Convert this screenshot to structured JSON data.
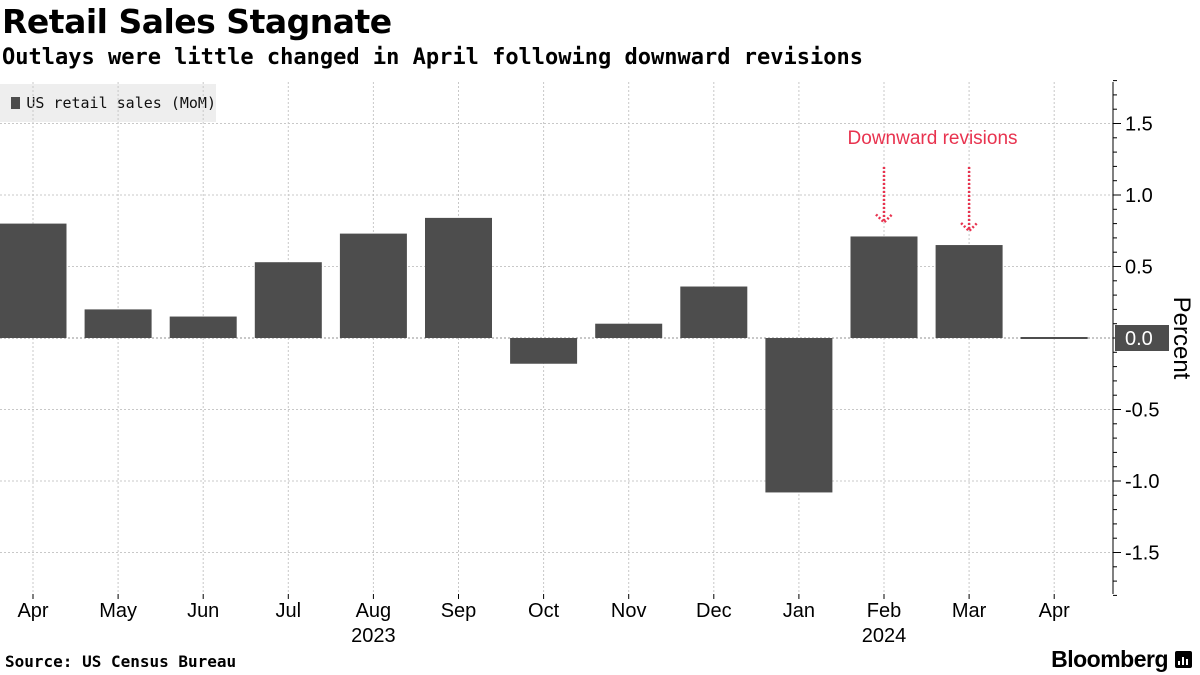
{
  "title": "Retail Sales Stagnate",
  "subtitle": "Outlays were little changed in April following downward revisions",
  "legend": {
    "series_label": "US retail sales (MoM)"
  },
  "source": "Source: US Census Bureau",
  "brand": "Bloomberg",
  "brand_icon": "bloomberg-terminal-icon",
  "colors": {
    "bar": "#4d4d4d",
    "annotation": "#e8334f",
    "grid": "#c8c8c8"
  },
  "chart_data": {
    "type": "bar",
    "title": "Retail Sales Stagnate",
    "subtitle": "Outlays were little changed in April following downward revisions",
    "categories": [
      "Apr",
      "May",
      "Jun",
      "Jul",
      "Aug",
      "Sep",
      "Oct",
      "Nov",
      "Dec",
      "Jan",
      "Feb",
      "Mar",
      "Apr"
    ],
    "year_labels": [
      {
        "label": "2023",
        "start_index": 0,
        "end_index": 8
      },
      {
        "label": "2024",
        "start_index": 9,
        "end_index": 12
      }
    ],
    "series": [
      {
        "name": "US retail sales (MoM)",
        "values": [
          0.8,
          0.2,
          0.15,
          0.53,
          0.73,
          0.84,
          -0.18,
          0.1,
          0.36,
          -1.08,
          0.71,
          0.65,
          0.0
        ]
      }
    ],
    "ylabel": "Percent",
    "ylim": [
      -1.8,
      1.8
    ],
    "yticks": [
      1.5,
      1.0,
      0.5,
      0.0,
      -0.5,
      -1.0,
      -1.5
    ],
    "ytick_labels": [
      "1.5",
      "1.0",
      "0.5",
      "0.0",
      "-0.5",
      "-1.0",
      "-1.5"
    ],
    "y_axis_position": "right",
    "grid": true,
    "last_value_label": "0.0",
    "annotations": [
      {
        "text": "Downward revisions",
        "arrow_targets": [
          10,
          11
        ]
      }
    ]
  }
}
